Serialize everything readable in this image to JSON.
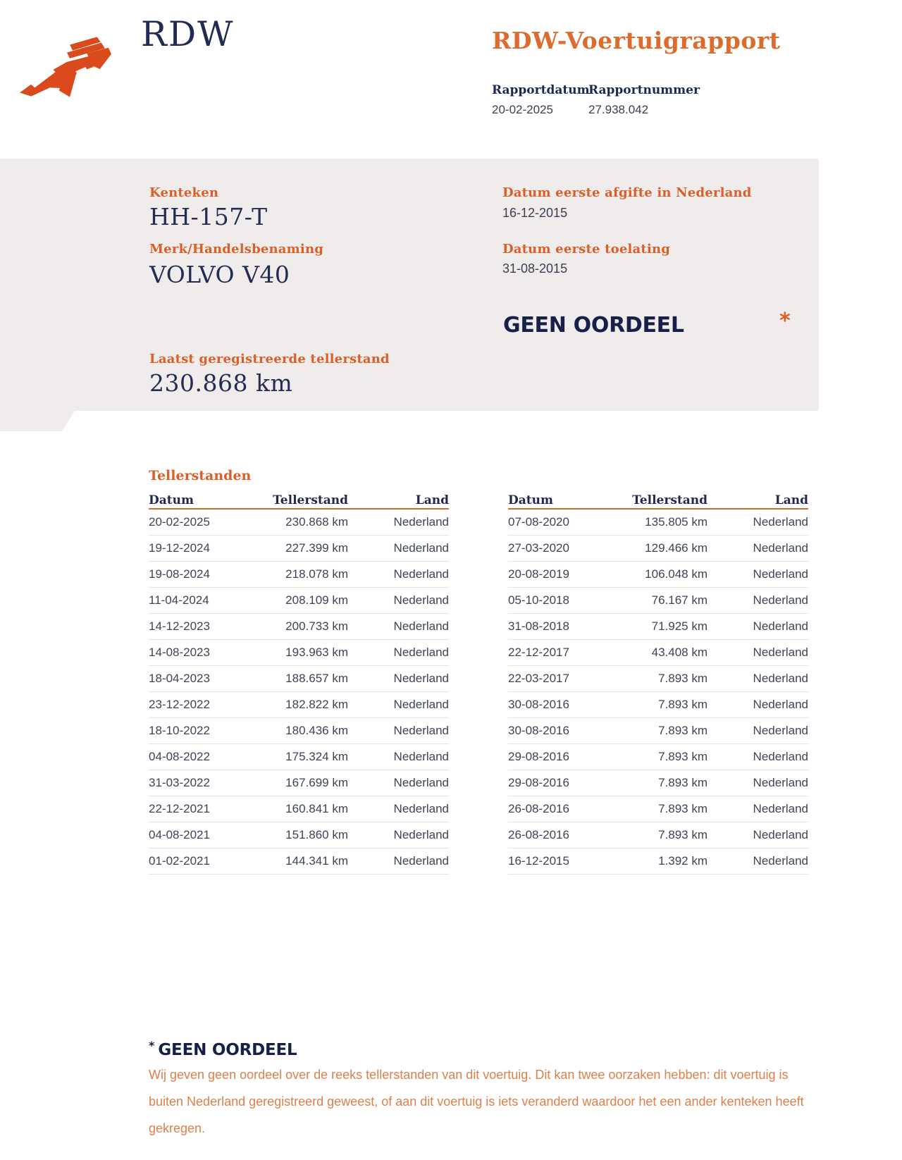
{
  "header": {
    "logo_name": "rdw-logo",
    "wordmark": "RDW",
    "title": "RDW-Voertuigrapport",
    "report_date_label": "Rapportdatum",
    "report_date": "20-02-2025",
    "report_number_label": "Rapportnummer",
    "report_number": "27.938.042"
  },
  "vehicle_panel": {
    "kenteken_label": "Kenteken",
    "kenteken": "HH-157-T",
    "merk_label": "Merk/Handelsbenaming",
    "merk": "VOLVO V40",
    "afgifte_label": "Datum eerste afgifte in Nederland",
    "afgifte": "16-12-2015",
    "toelating_label": "Datum eerste toelating",
    "toelating": "31-08-2015",
    "oordeel": "GEEN OORDEEL",
    "oordeel_asterisk": "*",
    "tellerstand_label": "Laatst geregistreerde tellerstand",
    "tellerstand": "230.868 km"
  },
  "tellerstanden": {
    "section_title": "Tellerstanden",
    "columns": [
      "Datum",
      "Tellerstand",
      "Land"
    ],
    "left_rows": [
      [
        "20-02-2025",
        "230.868 km",
        "Nederland"
      ],
      [
        "19-12-2024",
        "227.399 km",
        "Nederland"
      ],
      [
        "19-08-2024",
        "218.078 km",
        "Nederland"
      ],
      [
        "11-04-2024",
        "208.109 km",
        "Nederland"
      ],
      [
        "14-12-2023",
        "200.733 km",
        "Nederland"
      ],
      [
        "14-08-2023",
        "193.963 km",
        "Nederland"
      ],
      [
        "18-04-2023",
        "188.657 km",
        "Nederland"
      ],
      [
        "23-12-2022",
        "182.822 km",
        "Nederland"
      ],
      [
        "18-10-2022",
        "180.436 km",
        "Nederland"
      ],
      [
        "04-08-2022",
        "175.324 km",
        "Nederland"
      ],
      [
        "31-03-2022",
        "167.699 km",
        "Nederland"
      ],
      [
        "22-12-2021",
        "160.841 km",
        "Nederland"
      ],
      [
        "04-08-2021",
        "151.860 km",
        "Nederland"
      ],
      [
        "01-02-2021",
        "144.341 km",
        "Nederland"
      ]
    ],
    "right_rows": [
      [
        "07-08-2020",
        "135.805 km",
        "Nederland"
      ],
      [
        "27-03-2020",
        "129.466 km",
        "Nederland"
      ],
      [
        "20-08-2019",
        "106.048 km",
        "Nederland"
      ],
      [
        "05-10-2018",
        "76.167 km",
        "Nederland"
      ],
      [
        "31-08-2018",
        "71.925 km",
        "Nederland"
      ],
      [
        "22-12-2017",
        "43.408 km",
        "Nederland"
      ],
      [
        "22-03-2017",
        "7.893 km",
        "Nederland"
      ],
      [
        "30-08-2016",
        "7.893 km",
        "Nederland"
      ],
      [
        "30-08-2016",
        "7.893 km",
        "Nederland"
      ],
      [
        "29-08-2016",
        "7.893 km",
        "Nederland"
      ],
      [
        "29-08-2016",
        "7.893 km",
        "Nederland"
      ],
      [
        "26-08-2016",
        "7.893 km",
        "Nederland"
      ],
      [
        "26-08-2016",
        "7.893 km",
        "Nederland"
      ],
      [
        "16-12-2015",
        "1.392 km",
        "Nederland"
      ]
    ]
  },
  "footnote": {
    "asterisk": "*",
    "title": "GEEN OORDEEL",
    "text": "Wij geven geen oordeel over de reeks tellerstanden van dit voertuig. Dit kan twee oorzaken hebben: dit voertuig is buiten Nederland geregistreerd geweest, of aan dit voertuig is iets veranderd waardoor het een ander kenteken heeft gekregen."
  },
  "colors": {
    "accent_orange": "#dd5f28",
    "title_orange": "#dd6b2d",
    "paragraph_orange": "#e07f4a",
    "navy": "#1e2951",
    "logo_orange_red": "#db4a1c",
    "panel_gray": "#efeceb"
  }
}
